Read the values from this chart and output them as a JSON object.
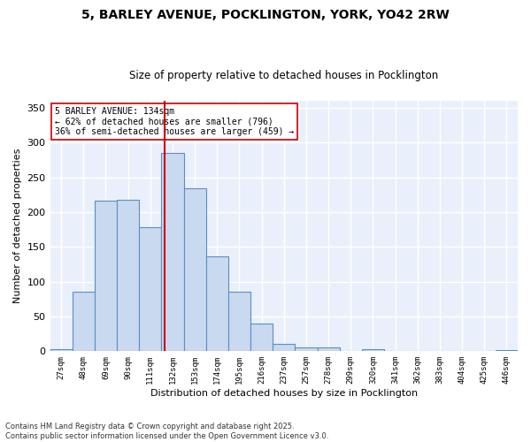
{
  "title_line1": "5, BARLEY AVENUE, POCKLINGTON, YORK, YO42 2RW",
  "title_line2": "Size of property relative to detached houses in Pocklington",
  "xlabel": "Distribution of detached houses by size in Pocklington",
  "ylabel": "Number of detached properties",
  "categories": [
    "27sqm",
    "48sqm",
    "69sqm",
    "90sqm",
    "111sqm",
    "132sqm",
    "153sqm",
    "174sqm",
    "195sqm",
    "216sqm",
    "237sqm",
    "257sqm",
    "278sqm",
    "299sqm",
    "320sqm",
    "341sqm",
    "362sqm",
    "383sqm",
    "404sqm",
    "425sqm",
    "446sqm"
  ],
  "values": [
    3,
    85,
    216,
    218,
    178,
    285,
    234,
    137,
    85,
    40,
    10,
    5,
    5,
    0,
    3,
    0,
    0,
    0,
    1,
    0,
    2
  ],
  "bar_color": "#c9d9f0",
  "bar_edge_color": "#5b8ec4",
  "vline_x": 4.65,
  "vline_color": "#cc0000",
  "annotation_text": "5 BARLEY AVENUE: 134sqm\n← 62% of detached houses are smaller (796)\n36% of semi-detached houses are larger (459) →",
  "annotation_box_color": "#ffffff",
  "annotation_box_edge": "#cc0000",
  "ylim": [
    0,
    360
  ],
  "yticks": [
    0,
    50,
    100,
    150,
    200,
    250,
    300,
    350
  ],
  "background_color": "#eaf0fb",
  "grid_color": "#ffffff",
  "footer_line1": "Contains HM Land Registry data © Crown copyright and database right 2025.",
  "footer_line2": "Contains public sector information licensed under the Open Government Licence v3.0."
}
